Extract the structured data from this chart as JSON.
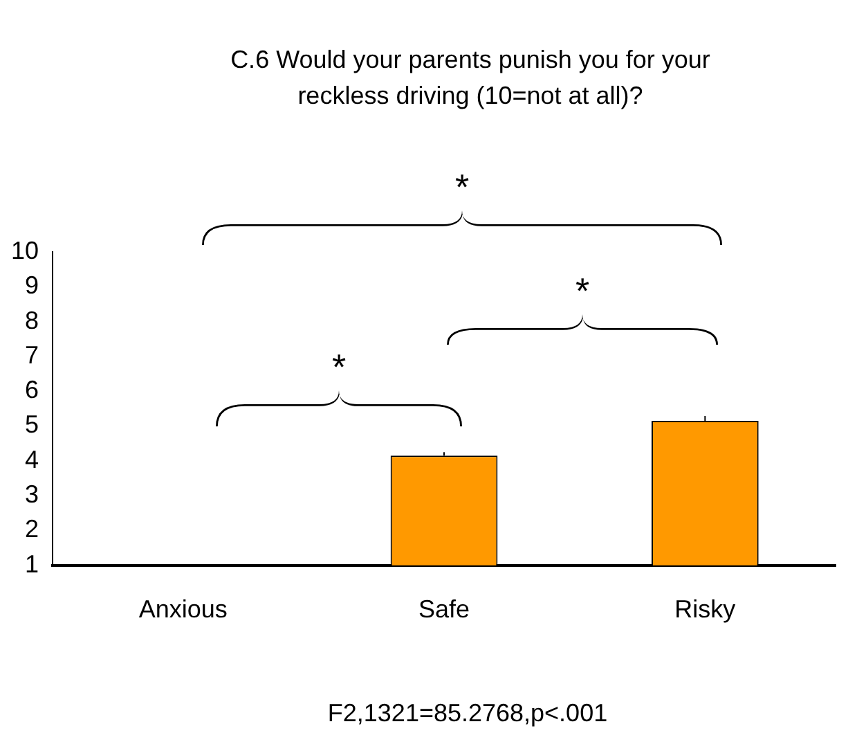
{
  "chart_data": {
    "type": "bar",
    "title": "C.6 Would your parents punish you for your reckless driving (10=not at all)?",
    "categories": [
      "Anxious",
      "Safe",
      "Risky"
    ],
    "values": [
      null,
      4.15,
      5.15
    ],
    "errors": [
      null,
      0.1,
      0.14
    ],
    "color": "#ff9900",
    "ylim": [
      1,
      10
    ],
    "yticks": [
      1,
      2,
      3,
      4,
      5,
      6,
      7,
      8,
      9,
      10
    ],
    "grid": false,
    "legend": false,
    "annotations": [
      "*",
      "*",
      "*",
      "F2,1321=85.2768,p<.001"
    ]
  }
}
